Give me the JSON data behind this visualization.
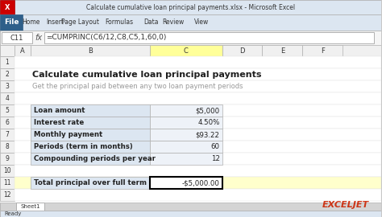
{
  "title_bar": "Calculate cumulative loan principal payments.xlsx - Microsoft Excel",
  "formula_bar_cell": "C11",
  "formula_bar_formula": "=CUMPRINC(C6/12,C8,C5,1,60,0)",
  "heading": "Calculate cumulative loan principal payments",
  "subheading": "Get the principal paid between any two loan payment periods",
  "table_rows": [
    {
      "label": "Loan amount",
      "value": "$5,000"
    },
    {
      "label": "Interest rate",
      "value": "4.50%"
    },
    {
      "label": "Monthly payment",
      "value": "$93.22"
    },
    {
      "label": "Periods (term in months)",
      "value": "60"
    },
    {
      "label": "Compounding periods per year",
      "value": "12"
    }
  ],
  "result_label": "Total principal over full term",
  "result_value": "-$5,000.00",
  "row_numbers": [
    "1",
    "2",
    "3",
    "4",
    "5",
    "6",
    "7",
    "8",
    "9",
    "10",
    "11",
    "12"
  ],
  "col_headers": [
    "A",
    "B",
    "C",
    "D",
    "E",
    "F"
  ],
  "bg_color": "#f0f0f0",
  "excel_bg": "#ffffff",
  "ribbon_bg": "#dce6f1",
  "file_btn_color": "#2e5f8a",
  "table_header_bg": "#dce6f1",
  "table_row_bg": "#eef2f8",
  "result_row_bg": "#f5f5f5",
  "highlight_col_bg": "#ffff99",
  "row11_bg": "#ffffcc",
  "sheet_tab": "Sheet1",
  "status_bar": "Ready",
  "exceljet_color": "#c0392b"
}
